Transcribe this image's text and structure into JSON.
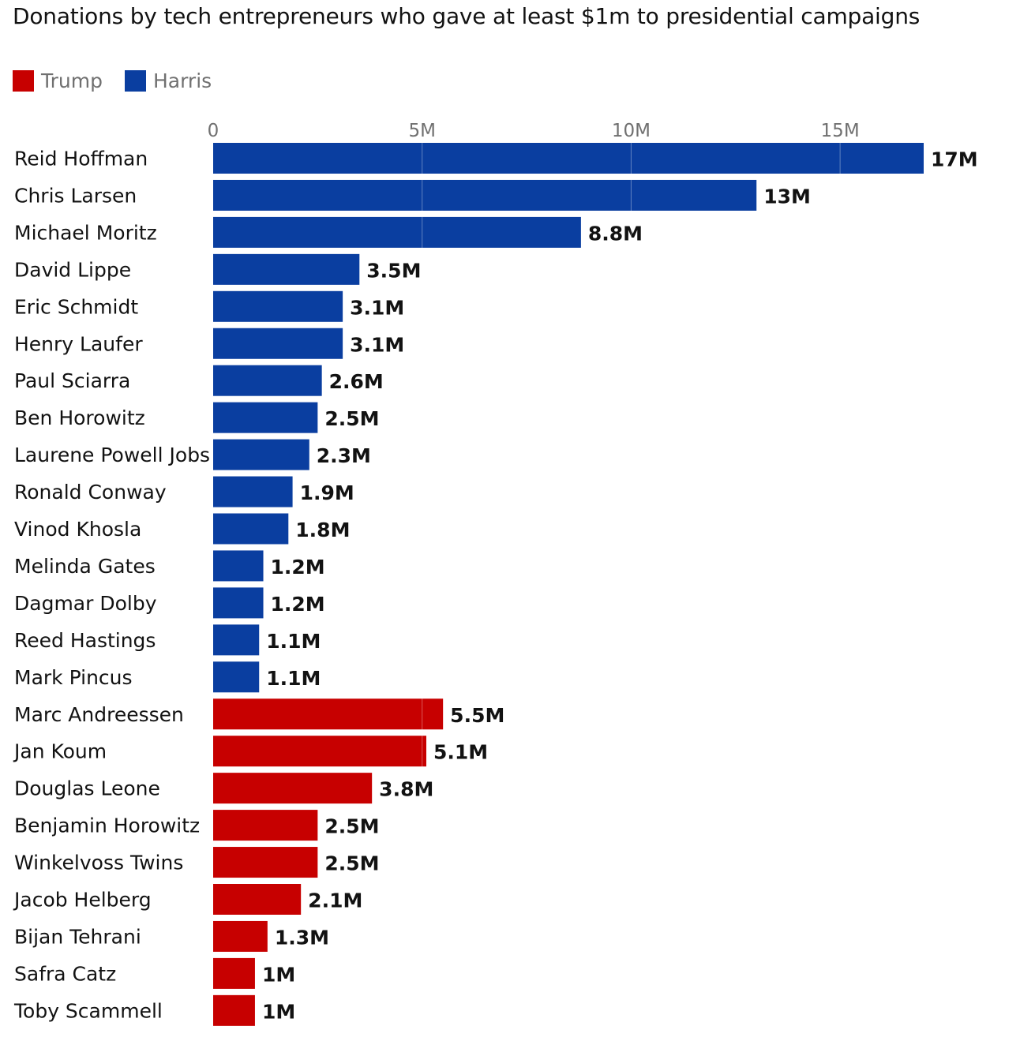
{
  "chart_data": {
    "type": "bar",
    "orientation": "horizontal",
    "title": "Donations by tech entrepreneurs who gave at least $1m to presidential campaigns",
    "legend": [
      {
        "name": "Trump",
        "color": "#c70000"
      },
      {
        "name": "Harris",
        "color": "#0a3ea0"
      }
    ],
    "x_ticks": [
      {
        "value": 0,
        "label": "0"
      },
      {
        "value": 5,
        "label": "5M"
      },
      {
        "value": 10,
        "label": "10M"
      },
      {
        "value": 15,
        "label": "15M"
      }
    ],
    "xlim": [
      0,
      17.7
    ],
    "unit": "M",
    "bars": [
      {
        "name": "Reid Hoffman",
        "value": 17,
        "label": "17M",
        "series": "Harris"
      },
      {
        "name": "Chris Larsen",
        "value": 13,
        "label": "13M",
        "series": "Harris"
      },
      {
        "name": "Michael Moritz",
        "value": 8.8,
        "label": "8.8M",
        "series": "Harris"
      },
      {
        "name": "David Lippe",
        "value": 3.5,
        "label": "3.5M",
        "series": "Harris"
      },
      {
        "name": "Eric Schmidt",
        "value": 3.1,
        "label": "3.1M",
        "series": "Harris"
      },
      {
        "name": "Henry Laufer",
        "value": 3.1,
        "label": "3.1M",
        "series": "Harris"
      },
      {
        "name": "Paul Sciarra",
        "value": 2.6,
        "label": "2.6M",
        "series": "Harris"
      },
      {
        "name": "Ben Horowitz",
        "value": 2.5,
        "label": "2.5M",
        "series": "Harris"
      },
      {
        "name": "Laurene Powell Jobs",
        "value": 2.3,
        "label": "2.3M",
        "series": "Harris"
      },
      {
        "name": "Ronald Conway",
        "value": 1.9,
        "label": "1.9M",
        "series": "Harris"
      },
      {
        "name": "Vinod Khosla",
        "value": 1.8,
        "label": "1.8M",
        "series": "Harris"
      },
      {
        "name": "Melinda Gates",
        "value": 1.2,
        "label": "1.2M",
        "series": "Harris"
      },
      {
        "name": "Dagmar Dolby",
        "value": 1.2,
        "label": "1.2M",
        "series": "Harris"
      },
      {
        "name": "Reed Hastings",
        "value": 1.1,
        "label": "1.1M",
        "series": "Harris"
      },
      {
        "name": "Mark Pincus",
        "value": 1.1,
        "label": "1.1M",
        "series": "Harris"
      },
      {
        "name": "Marc Andreessen",
        "value": 5.5,
        "label": "5.5M",
        "series": "Trump"
      },
      {
        "name": "Jan Koum",
        "value": 5.1,
        "label": "5.1M",
        "series": "Trump"
      },
      {
        "name": "Douglas Leone",
        "value": 3.8,
        "label": "3.8M",
        "series": "Trump"
      },
      {
        "name": "Benjamin Horowitz",
        "value": 2.5,
        "label": "2.5M",
        "series": "Trump"
      },
      {
        "name": "Winkelvoss Twins",
        "value": 2.5,
        "label": "2.5M",
        "series": "Trump"
      },
      {
        "name": "Jacob Helberg",
        "value": 2.1,
        "label": "2.1M",
        "series": "Trump"
      },
      {
        "name": "Bijan Tehrani",
        "value": 1.3,
        "label": "1.3M",
        "series": "Trump"
      },
      {
        "name": "Safra Catz",
        "value": 1,
        "label": "1M",
        "series": "Trump"
      },
      {
        "name": "Toby Scammell",
        "value": 1,
        "label": "1M",
        "series": "Trump"
      }
    ]
  }
}
